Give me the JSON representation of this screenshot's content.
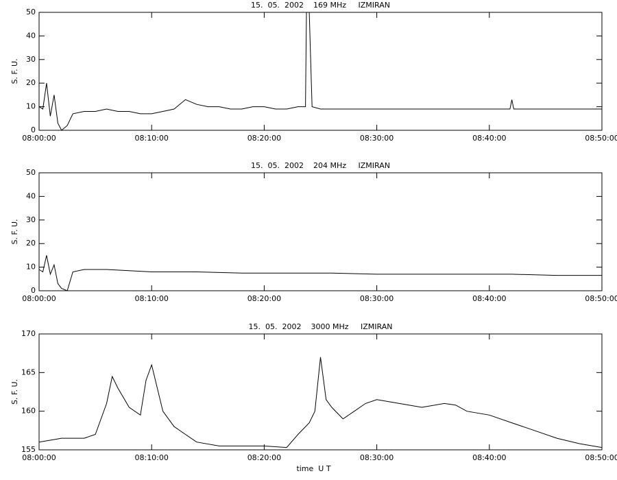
{
  "chart_data": [
    {
      "type": "line",
      "title": "15.  05.  2002    169 MHz     IZMIRAN",
      "y_label": "S. F. U.",
      "color": "#000000",
      "x": [
        "08:00:00",
        "08:00:20",
        "08:00:40",
        "08:01:00",
        "08:01:20",
        "08:01:40",
        "08:02:00",
        "08:02:30",
        "08:03:00",
        "08:04:00",
        "08:05:00",
        "08:06:00",
        "08:07:00",
        "08:08:00",
        "08:09:00",
        "08:10:00",
        "08:11:00",
        "08:12:00",
        "08:13:00",
        "08:14:00",
        "08:15:00",
        "08:16:00",
        "08:17:00",
        "08:18:00",
        "08:19:00",
        "08:20:00",
        "08:21:00",
        "08:22:00",
        "08:23:00",
        "08:23:40",
        "08:23:45",
        "08:24:00",
        "08:24:15",
        "08:25:00",
        "08:26:00",
        "08:28:00",
        "08:30:00",
        "08:32:00",
        "08:34:00",
        "08:36:00",
        "08:38:00",
        "08:40:00",
        "08:41:50",
        "08:42:00",
        "08:42:10",
        "08:44:00",
        "08:46:00",
        "08:48:00",
        "08:50:00"
      ],
      "values": [
        10,
        9,
        20,
        6,
        15,
        3,
        0,
        2,
        7,
        8,
        8,
        9,
        8,
        8,
        7,
        7,
        8,
        9,
        13,
        11,
        10,
        10,
        9,
        9,
        10,
        10,
        9,
        9,
        10,
        10,
        50,
        50,
        10,
        9,
        9,
        9,
        9,
        9,
        9,
        9,
        9,
        9,
        9,
        13,
        9,
        9,
        9,
        9,
        9
      ],
      "xlim": [
        "08:00:00",
        "08:50:00"
      ],
      "xticks": [
        "08:00:00",
        "08:10:00",
        "08:20:00",
        "08:30:00",
        "08:40:00",
        "08:50:00"
      ],
      "ylim": [
        0,
        50
      ],
      "yticks": [
        0,
        10,
        20,
        30,
        40,
        50
      ]
    },
    {
      "type": "line",
      "title": "15.  05.  2002    204 MHz     IZMIRAN",
      "y_label": "S. F. U.",
      "color": "#000000",
      "x": [
        "08:00:00",
        "08:00:20",
        "08:00:40",
        "08:01:00",
        "08:01:20",
        "08:01:40",
        "08:02:00",
        "08:02:30",
        "08:03:00",
        "08:04:00",
        "08:05:00",
        "08:06:00",
        "08:08:00",
        "08:10:00",
        "08:14:00",
        "08:18:00",
        "08:22:00",
        "08:26:00",
        "08:30:00",
        "08:34:00",
        "08:38:00",
        "08:42:00",
        "08:46:00",
        "08:50:00"
      ],
      "values": [
        9,
        8,
        15,
        7,
        11,
        3,
        1,
        0,
        8,
        9,
        9,
        9,
        8.5,
        8,
        8,
        7.5,
        7.5,
        7.5,
        7,
        7,
        7,
        7,
        6.5,
        6.5
      ],
      "xlim": [
        "08:00:00",
        "08:50:00"
      ],
      "xticks": [
        "08:00:00",
        "08:10:00",
        "08:20:00",
        "08:30:00",
        "08:40:00",
        "08:50:00"
      ],
      "ylim": [
        0,
        50
      ],
      "yticks": [
        0,
        10,
        20,
        30,
        40,
        50
      ]
    },
    {
      "type": "line",
      "title": "15.  05.  2002    3000 MHz     IZMIRAN",
      "y_label": "S. F. U.",
      "x_label": "time  U T",
      "color": "#000000",
      "x": [
        "08:00:00",
        "08:02:00",
        "08:04:00",
        "08:05:00",
        "08:06:00",
        "08:06:30",
        "08:07:00",
        "08:08:00",
        "08:09:00",
        "08:09:30",
        "08:10:00",
        "08:11:00",
        "08:12:00",
        "08:13:00",
        "08:14:00",
        "08:16:00",
        "08:18:00",
        "08:20:00",
        "08:22:00",
        "08:23:00",
        "08:24:00",
        "08:24:30",
        "08:25:00",
        "08:25:30",
        "08:26:00",
        "08:27:00",
        "08:28:00",
        "08:29:00",
        "08:30:00",
        "08:32:00",
        "08:34:00",
        "08:36:00",
        "08:37:00",
        "08:38:00",
        "08:40:00",
        "08:42:00",
        "08:44:00",
        "08:46:00",
        "08:48:00",
        "08:50:00"
      ],
      "values": [
        156,
        156.5,
        156.5,
        157,
        161,
        164.5,
        163,
        160.5,
        159.5,
        164,
        166,
        160,
        158,
        157,
        156,
        155.5,
        155.5,
        155.5,
        155.3,
        157,
        158.5,
        160,
        167,
        161.5,
        160.5,
        159,
        160,
        161,
        161.5,
        161,
        160.5,
        161,
        160.8,
        160,
        159.5,
        158.5,
        157.5,
        156.5,
        155.8,
        155.3
      ],
      "xlim": [
        "08:00:00",
        "08:50:00"
      ],
      "xticks": [
        "08:00:00",
        "08:10:00",
        "08:20:00",
        "08:30:00",
        "08:40:00",
        "08:50:00"
      ],
      "ylim": [
        155,
        170
      ],
      "yticks": [
        155,
        160,
        165,
        170
      ]
    }
  ]
}
